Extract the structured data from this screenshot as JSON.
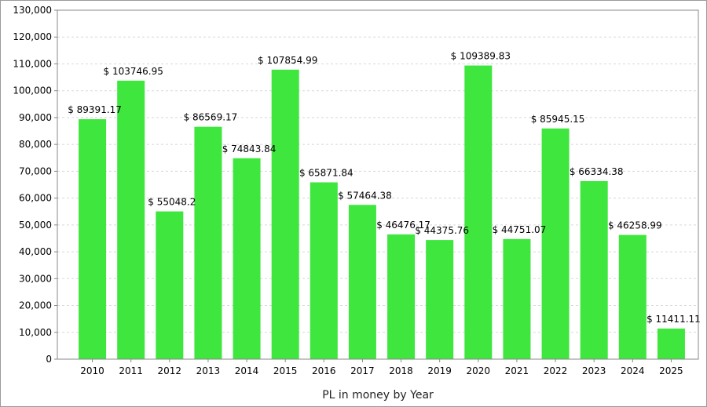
{
  "chart_data": {
    "type": "bar",
    "categories": [
      "2010",
      "2011",
      "2012",
      "2013",
      "2014",
      "2015",
      "2016",
      "2017",
      "2018",
      "2019",
      "2020",
      "2021",
      "2022",
      "2023",
      "2024",
      "2025"
    ],
    "values": [
      89391.17,
      103746.95,
      55048.2,
      86569.17,
      74843.84,
      107854.99,
      65871.84,
      57464.38,
      46476.17,
      44375.76,
      109389.83,
      44751.07,
      85945.15,
      66334.38,
      46258.99,
      11411.11
    ],
    "data_labels": [
      "$ 89391.17",
      "$ 103746.95",
      "$ 55048.2",
      "$ 86569.17",
      "$ 74843.84",
      "$ 107854.99",
      "$ 65871.84",
      "$ 57464.38",
      "$ 46476.17",
      "$ 44375.76",
      "$ 109389.83",
      "$ 44751.07",
      "$ 85945.15",
      "$ 66334.38",
      "$ 46258.99",
      "$ 11411.11"
    ],
    "title": "",
    "xlabel": "PL in money by Year",
    "ylabel": "",
    "ylim": [
      0,
      130000
    ],
    "yticks": [
      0,
      10000,
      20000,
      30000,
      40000,
      50000,
      60000,
      70000,
      80000,
      90000,
      100000,
      110000,
      120000,
      130000
    ],
    "ytick_labels": [
      "0",
      "10,000",
      "20,000",
      "30,000",
      "40,000",
      "50,000",
      "60,000",
      "70,000",
      "80,000",
      "90,000",
      "100,000",
      "110,000",
      "120,000",
      "130,000"
    ],
    "grid": true,
    "legend": "none",
    "bar_color": "#3ee63e",
    "grid_color": "#d8d8d8"
  }
}
